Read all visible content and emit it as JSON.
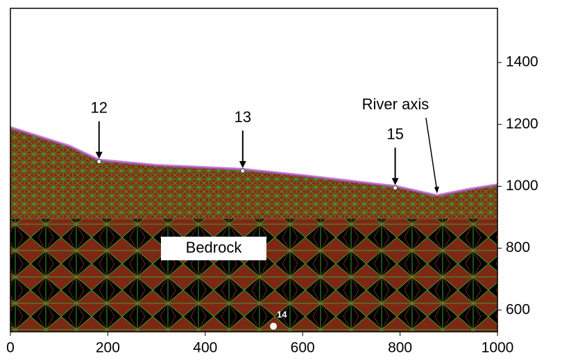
{
  "chart_data": {
    "type": "mesh",
    "x": [
      0,
      121,
      182,
      300,
      477,
      600,
      790,
      876,
      940,
      1000
    ],
    "series": [
      {
        "name": "Surface",
        "color": "#7a2a14",
        "values": [
          1190,
          1130,
          1085,
          1068,
          1055,
          1035,
          1000,
          970,
          990,
          1005
        ]
      }
    ],
    "bedrock_top": 895,
    "bedrock_label": "Bedrock",
    "points": [
      {
        "label": "12",
        "x": 182,
        "y": 1080
      },
      {
        "label": "13",
        "x": 477,
        "y": 1050
      },
      {
        "label": "15",
        "x": 790,
        "y": 995
      },
      {
        "label": "14",
        "x": 540,
        "y": 548
      }
    ],
    "river_axis": {
      "label": "River axis",
      "x": 876,
      "y": 970
    },
    "xlim": [
      0,
      1000
    ],
    "xticks": [
      0,
      200,
      400,
      600,
      800,
      1000
    ],
    "ylim": [
      530,
      1575
    ],
    "yticks": [
      600,
      800,
      1000,
      1200,
      1400
    ]
  }
}
